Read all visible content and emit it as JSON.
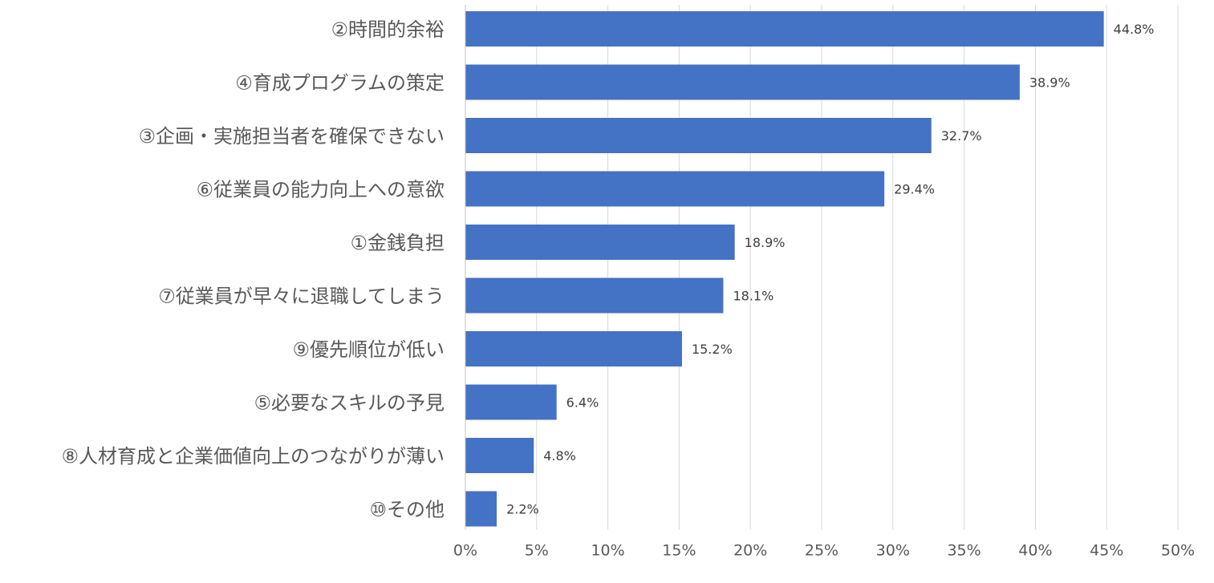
{
  "chart_data": {
    "type": "bar",
    "orientation": "horizontal",
    "categories": [
      "②時間的余裕",
      "④育成プログラムの策定",
      "③企画・実施担当者を確保できない",
      "⑥従業員の能力向上への意欲",
      "①金銭負担",
      "⑦従業員が早々に退職してしまう",
      "⑨優先順位が低い",
      "⑤必要なスキルの予見",
      "⑧人材育成と企業価値向上のつながりが薄い",
      "⑩その他"
    ],
    "values": [
      44.8,
      38.9,
      32.7,
      29.4,
      18.9,
      18.1,
      15.2,
      6.4,
      4.8,
      2.2
    ],
    "data_labels": [
      "44.8%",
      "38.9%",
      "32.7%",
      "29.4%",
      "18.9%",
      "18.1%",
      "15.2%",
      "6.4%",
      "4.8%",
      "2.2%"
    ],
    "xlim": [
      0,
      50
    ],
    "xticks": [
      0,
      5,
      10,
      15,
      20,
      25,
      30,
      35,
      40,
      45,
      50
    ],
    "xtick_labels": [
      "0%",
      "5%",
      "10%",
      "15%",
      "20%",
      "25%",
      "30%",
      "35%",
      "40%",
      "45%",
      "50%"
    ],
    "grid": true,
    "legend": "none",
    "bar_color": "#4472c4",
    "title": "",
    "xlabel": "",
    "ylabel": ""
  }
}
